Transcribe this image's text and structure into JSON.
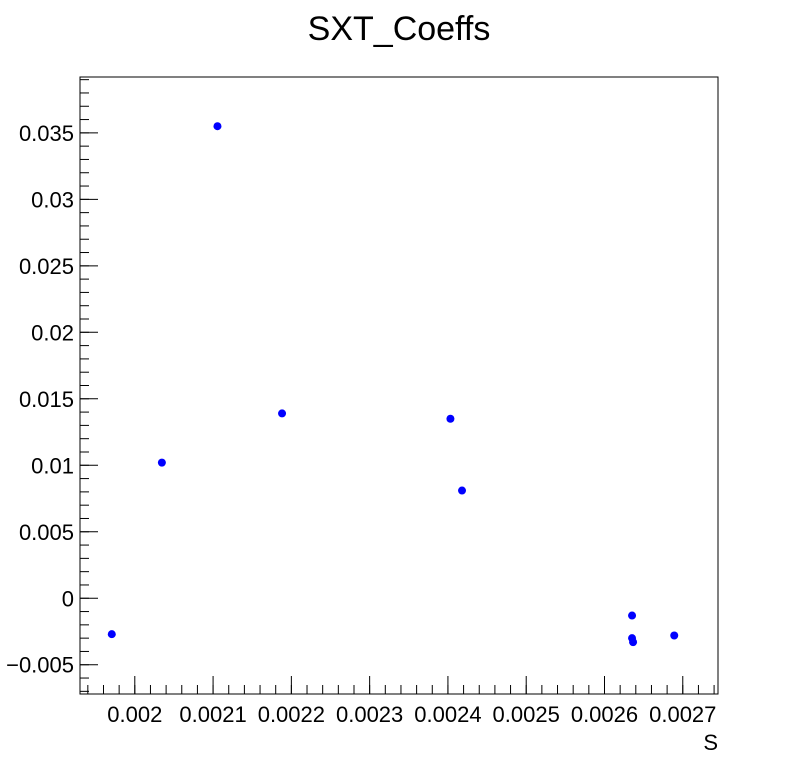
{
  "chart_data": {
    "type": "scatter",
    "title": "SXT_Coeffs",
    "xlabel": "S",
    "ylabel": "",
    "xlim": [
      0.00193,
      0.002745
    ],
    "ylim": [
      -0.0072,
      0.0392
    ],
    "x_ticks": [
      {
        "value": 0.002,
        "label": "0.002"
      },
      {
        "value": 0.0021,
        "label": "0.0021"
      },
      {
        "value": 0.0022,
        "label": "0.0022"
      },
      {
        "value": 0.0023,
        "label": "0.0023"
      },
      {
        "value": 0.0024,
        "label": "0.0024"
      },
      {
        "value": 0.0025,
        "label": "0.0025"
      },
      {
        "value": 0.0026,
        "label": "0.0026"
      },
      {
        "value": 0.0027,
        "label": "0.0027"
      }
    ],
    "y_ticks": [
      {
        "value": -0.005,
        "label": "−0.005"
      },
      {
        "value": 0,
        "label": "0"
      },
      {
        "value": 0.005,
        "label": "0.005"
      },
      {
        "value": 0.01,
        "label": "0.01"
      },
      {
        "value": 0.015,
        "label": "0.015"
      },
      {
        "value": 0.02,
        "label": "0.02"
      },
      {
        "value": 0.025,
        "label": "0.025"
      },
      {
        "value": 0.03,
        "label": "0.03"
      },
      {
        "value": 0.035,
        "label": "0.035"
      }
    ],
    "grid": false,
    "marker_color": "#0000ff",
    "points": [
      {
        "x": 0.0019706,
        "y": -0.0027
      },
      {
        "x": 0.0020346,
        "y": 0.0102
      },
      {
        "x": 0.0021056,
        "y": 0.0355
      },
      {
        "x": 0.0021881,
        "y": 0.0139
      },
      {
        "x": 0.0024032,
        "y": 0.0135
      },
      {
        "x": 0.002418,
        "y": 0.0081
      },
      {
        "x": 0.0026352,
        "y": -0.0013
      },
      {
        "x": 0.0026352,
        "y": -0.003
      },
      {
        "x": 0.0026365,
        "y": -0.0033
      },
      {
        "x": 0.0026891,
        "y": -0.0028
      }
    ]
  }
}
